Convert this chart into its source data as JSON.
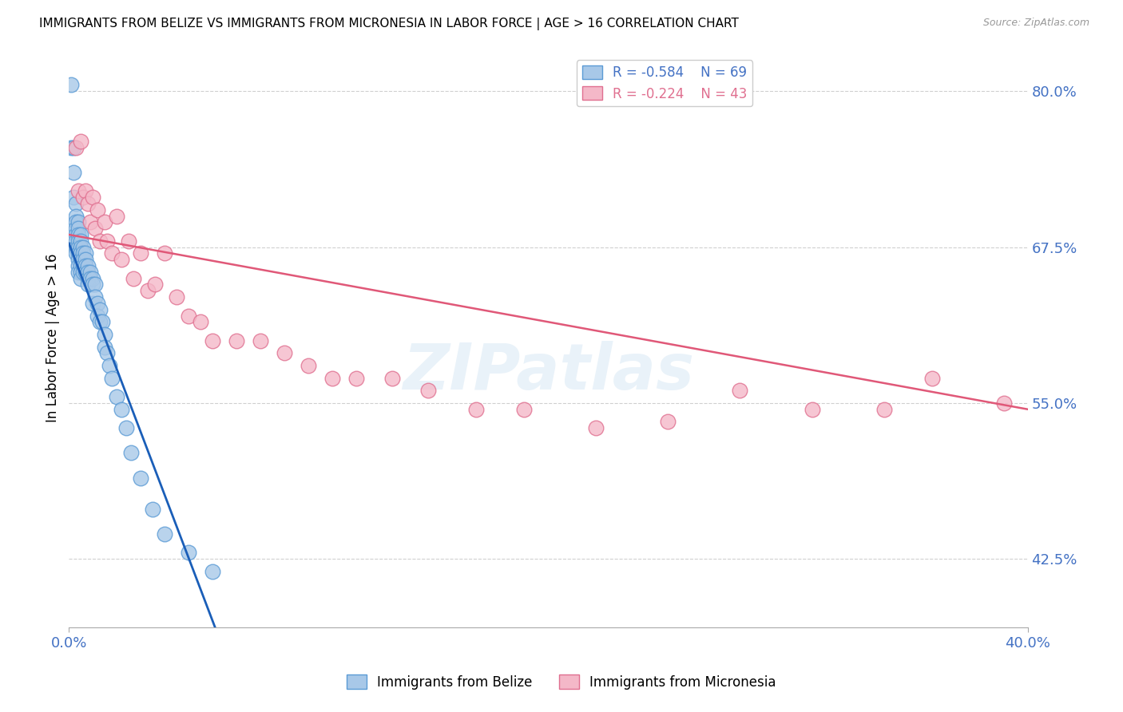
{
  "title": "IMMIGRANTS FROM BELIZE VS IMMIGRANTS FROM MICRONESIA IN LABOR FORCE | AGE > 16 CORRELATION CHART",
  "source": "Source: ZipAtlas.com",
  "ylabel": "In Labor Force | Age > 16",
  "ytick_labels": [
    "80.0%",
    "67.5%",
    "55.0%",
    "42.5%"
  ],
  "ytick_values": [
    0.8,
    0.675,
    0.55,
    0.425
  ],
  "xtick_left_label": "0.0%",
  "xtick_right_label": "40.0%",
  "xmin": 0.0,
  "xmax": 0.4,
  "ymin": 0.37,
  "ymax": 0.835,
  "watermark": "ZIPatlas",
  "belize_color": "#a8c8e8",
  "belize_edge_color": "#5b9bd5",
  "micronesia_color": "#f4b8c8",
  "micronesia_edge_color": "#e07090",
  "belize_line_color": "#1a5eb8",
  "micronesia_line_color": "#e05878",
  "belize_R": -0.584,
  "belize_N": 69,
  "micronesia_R": -0.224,
  "micronesia_N": 43,
  "legend_label_belize": "Immigrants from Belize",
  "legend_label_micronesia": "Immigrants from Micronesia",
  "belize_points_x": [
    0.001,
    0.001,
    0.002,
    0.002,
    0.002,
    0.003,
    0.003,
    0.003,
    0.003,
    0.003,
    0.003,
    0.003,
    0.003,
    0.004,
    0.004,
    0.004,
    0.004,
    0.004,
    0.004,
    0.004,
    0.004,
    0.004,
    0.005,
    0.005,
    0.005,
    0.005,
    0.005,
    0.005,
    0.005,
    0.005,
    0.006,
    0.006,
    0.006,
    0.006,
    0.006,
    0.007,
    0.007,
    0.007,
    0.007,
    0.008,
    0.008,
    0.008,
    0.008,
    0.009,
    0.009,
    0.01,
    0.01,
    0.01,
    0.011,
    0.011,
    0.012,
    0.012,
    0.013,
    0.013,
    0.014,
    0.015,
    0.015,
    0.016,
    0.017,
    0.018,
    0.02,
    0.022,
    0.024,
    0.026,
    0.03,
    0.035,
    0.04,
    0.05,
    0.06
  ],
  "belize_points_y": [
    0.805,
    0.755,
    0.755,
    0.735,
    0.715,
    0.71,
    0.7,
    0.695,
    0.69,
    0.685,
    0.68,
    0.675,
    0.67,
    0.695,
    0.69,
    0.685,
    0.68,
    0.675,
    0.67,
    0.665,
    0.66,
    0.655,
    0.685,
    0.68,
    0.675,
    0.67,
    0.665,
    0.66,
    0.655,
    0.65,
    0.675,
    0.67,
    0.665,
    0.66,
    0.655,
    0.67,
    0.665,
    0.66,
    0.655,
    0.66,
    0.655,
    0.65,
    0.645,
    0.655,
    0.65,
    0.65,
    0.645,
    0.63,
    0.645,
    0.635,
    0.63,
    0.62,
    0.625,
    0.615,
    0.615,
    0.605,
    0.595,
    0.59,
    0.58,
    0.57,
    0.555,
    0.545,
    0.53,
    0.51,
    0.49,
    0.465,
    0.445,
    0.43,
    0.415
  ],
  "micronesia_points_x": [
    0.003,
    0.004,
    0.005,
    0.006,
    0.007,
    0.008,
    0.009,
    0.01,
    0.011,
    0.012,
    0.013,
    0.015,
    0.016,
    0.018,
    0.02,
    0.022,
    0.025,
    0.027,
    0.03,
    0.033,
    0.036,
    0.04,
    0.045,
    0.05,
    0.055,
    0.06,
    0.07,
    0.08,
    0.09,
    0.1,
    0.11,
    0.12,
    0.135,
    0.15,
    0.17,
    0.19,
    0.22,
    0.25,
    0.28,
    0.31,
    0.34,
    0.36,
    0.39
  ],
  "micronesia_points_y": [
    0.755,
    0.72,
    0.76,
    0.715,
    0.72,
    0.71,
    0.695,
    0.715,
    0.69,
    0.705,
    0.68,
    0.695,
    0.68,
    0.67,
    0.7,
    0.665,
    0.68,
    0.65,
    0.67,
    0.64,
    0.645,
    0.67,
    0.635,
    0.62,
    0.615,
    0.6,
    0.6,
    0.6,
    0.59,
    0.58,
    0.57,
    0.57,
    0.57,
    0.56,
    0.545,
    0.545,
    0.53,
    0.535,
    0.56,
    0.545,
    0.545,
    0.57,
    0.55
  ],
  "grid_color": "#d0d0d0",
  "background_color": "#ffffff",
  "title_fontsize": 11,
  "tick_label_color": "#4472c4"
}
